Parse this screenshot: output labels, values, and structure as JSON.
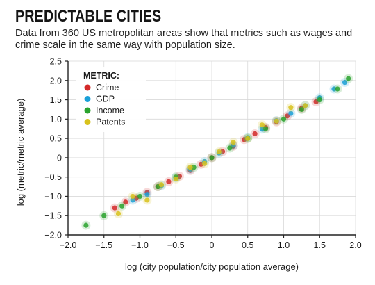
{
  "header": {
    "title": "PREDICTABLE CITIES",
    "subtitle": "Data from 360 US metropolitan areas show that metrics such as wages and crime scale in the same way with population size."
  },
  "chart_data": {
    "type": "scatter",
    "title": "PREDICTABLE CITIES",
    "xlabel": "log (city population/city population average)",
    "ylabel": "log (metric/metric average)",
    "xlim": [
      -2.0,
      2.0
    ],
    "ylim": [
      -2.0,
      2.5
    ],
    "x_ticks": [
      -2.0,
      -1.5,
      -1.0,
      -0.5,
      0,
      0.5,
      1.0,
      1.5,
      2.0
    ],
    "x_tick_labels": [
      "−2.0",
      "−1.5",
      "−1.0",
      "−0.5",
      "0",
      "0.5",
      "1.0",
      "1.5",
      "2.0"
    ],
    "y_ticks": [
      -2.0,
      -1.5,
      -1.0,
      -0.5,
      0,
      0.5,
      1.0,
      1.5,
      2.0,
      2.5
    ],
    "y_tick_labels": [
      "−2.0",
      "−1.5",
      "−1.0",
      "−0.5",
      "0",
      "0.5",
      "1.0",
      "1.5",
      "2.0",
      "2.5"
    ],
    "grid": true,
    "legend": {
      "title": "METRIC:",
      "placement": "top-left"
    },
    "series": [
      {
        "name": "Crime",
        "color": "#d42a2a",
        "x": [
          -1.35,
          -1.2,
          -1.05,
          -0.9,
          -0.75,
          -0.6,
          -0.45,
          -0.3,
          -0.15,
          0.0,
          0.15,
          0.3,
          0.45,
          0.6,
          0.75,
          0.9,
          1.05,
          1.25,
          1.45
        ],
        "y": [
          -1.3,
          -1.15,
          -1.05,
          -0.9,
          -0.75,
          -0.62,
          -0.48,
          -0.33,
          -0.17,
          0.0,
          0.16,
          0.3,
          0.47,
          0.62,
          0.78,
          0.93,
          1.08,
          1.28,
          1.45
        ]
      },
      {
        "name": "GDP",
        "color": "#1aa0d8",
        "x": [
          -1.1,
          -0.9,
          -0.7,
          -0.5,
          -0.3,
          -0.1,
          0.1,
          0.3,
          0.5,
          0.7,
          0.9,
          1.1,
          1.3,
          1.5,
          1.7,
          1.85
        ],
        "y": [
          -1.1,
          -0.95,
          -0.72,
          -0.52,
          -0.3,
          -0.1,
          0.12,
          0.32,
          0.52,
          0.74,
          0.96,
          1.15,
          1.35,
          1.55,
          1.78,
          1.95
        ]
      },
      {
        "name": "Income",
        "color": "#2aa32e",
        "x": [
          -1.75,
          -1.5,
          -1.25,
          -1.0,
          -0.75,
          -0.5,
          -0.25,
          0.0,
          0.25,
          0.5,
          0.75,
          1.0,
          1.25,
          1.5,
          1.75,
          1.9
        ],
        "y": [
          -1.75,
          -1.5,
          -1.25,
          -1.0,
          -0.75,
          -0.5,
          -0.25,
          0.0,
          0.25,
          0.5,
          0.75,
          1.0,
          1.25,
          1.5,
          1.78,
          2.05
        ]
      },
      {
        "name": "Patents",
        "color": "#d8c21c",
        "x": [
          -1.3,
          -1.1,
          -0.9,
          -0.7,
          -0.5,
          -0.3,
          -0.1,
          0.1,
          0.3,
          0.5,
          0.7,
          0.9,
          1.1,
          1.3
        ],
        "y": [
          -1.45,
          -1.0,
          -1.1,
          -0.7,
          -0.55,
          -0.25,
          -0.15,
          0.15,
          0.4,
          0.5,
          0.85,
          0.95,
          1.3,
          1.35
        ]
      }
    ]
  }
}
